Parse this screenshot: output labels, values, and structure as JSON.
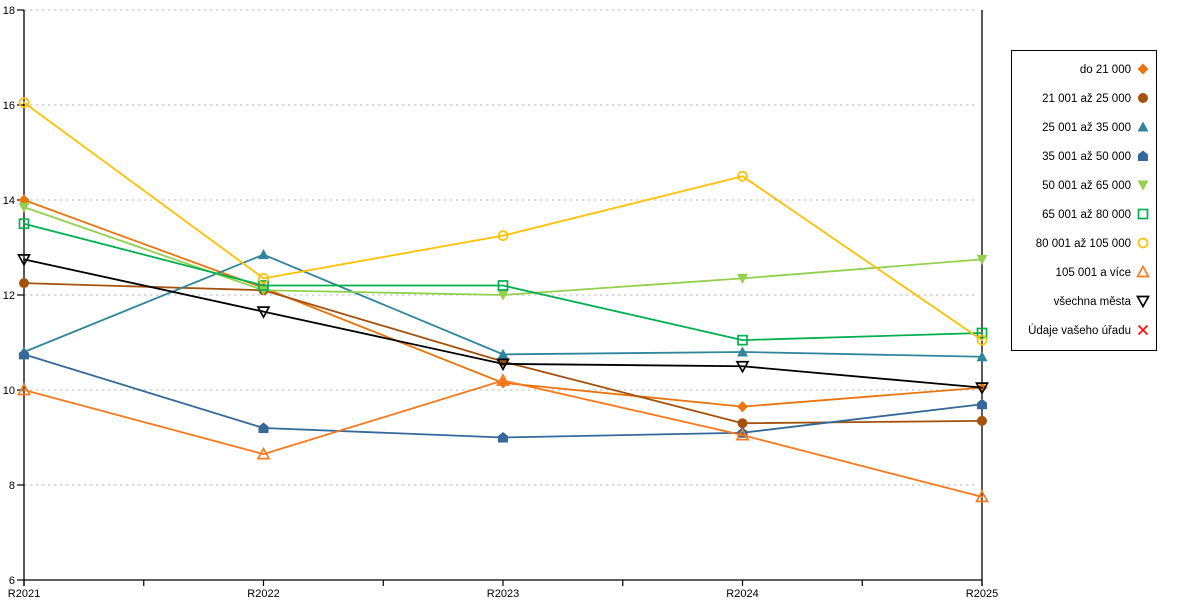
{
  "chart_data": {
    "type": "line",
    "title": "",
    "xlabel": "",
    "ylabel": "",
    "x_labels": [
      "R2021",
      "R2022",
      "R2023",
      "R2024",
      "R2025"
    ],
    "x_minor_ticks": true,
    "ylim": [
      6,
      18
    ],
    "yticks": [
      6,
      8,
      10,
      12,
      14,
      16,
      18
    ],
    "grid": "horizontal-dashed",
    "grid_color": "#c8c8c8",
    "axis_color": "#000000",
    "legend_position": "right",
    "legend_border_color": "#000000",
    "legend_bg_color": "#ffffff",
    "series": [
      {
        "name": "do 21 000",
        "marker": "diamond",
        "marker_fill": "filled",
        "color": "#E8750E",
        "values": [
          14.0,
          12.15,
          10.15,
          9.65,
          10.05
        ]
      },
      {
        "name": "21 001 až 25 000",
        "marker": "circle",
        "marker_fill": "filled",
        "color": "#A5520E",
        "values": [
          12.25,
          12.1,
          10.6,
          9.3,
          9.35
        ]
      },
      {
        "name": "25 001 až 35 000",
        "marker": "triangle-up",
        "marker_fill": "filled",
        "color": "#31859C",
        "values": [
          10.8,
          12.85,
          10.75,
          10.8,
          10.7
        ]
      },
      {
        "name": "35 001 až 50 000",
        "marker": "pentagon",
        "marker_fill": "filled",
        "color": "#35689B",
        "values": [
          10.75,
          9.2,
          9.0,
          9.1,
          9.7
        ]
      },
      {
        "name": "50 001 až 65 000",
        "marker": "triangle-down",
        "marker_fill": "filled",
        "color": "#92D050",
        "values": [
          13.85,
          12.1,
          12.0,
          12.35,
          12.75
        ]
      },
      {
        "name": "65 001 až 80 000",
        "marker": "square",
        "marker_fill": "open",
        "color": "#00B050",
        "values": [
          13.5,
          12.2,
          12.2,
          11.05,
          11.2
        ]
      },
      {
        "name": "80 001 až 105 000",
        "marker": "circle",
        "marker_fill": "open",
        "color": "#FFC000",
        "values": [
          16.05,
          12.35,
          13.25,
          14.5,
          11.05
        ]
      },
      {
        "name": "105 001 a více",
        "marker": "triangle-up",
        "marker_fill": "open",
        "color": "#F87A20",
        "values": [
          10.0,
          8.65,
          10.2,
          9.05,
          7.75
        ]
      },
      {
        "name": "všechna města",
        "marker": "triangle-down",
        "marker_fill": "open",
        "color": "#000000",
        "values": [
          12.75,
          11.65,
          10.55,
          10.5,
          10.05
        ]
      },
      {
        "name": "Údaje vašeho úřadu",
        "marker": "x",
        "marker_fill": "open",
        "color": "#FF0000",
        "values": []
      }
    ]
  }
}
